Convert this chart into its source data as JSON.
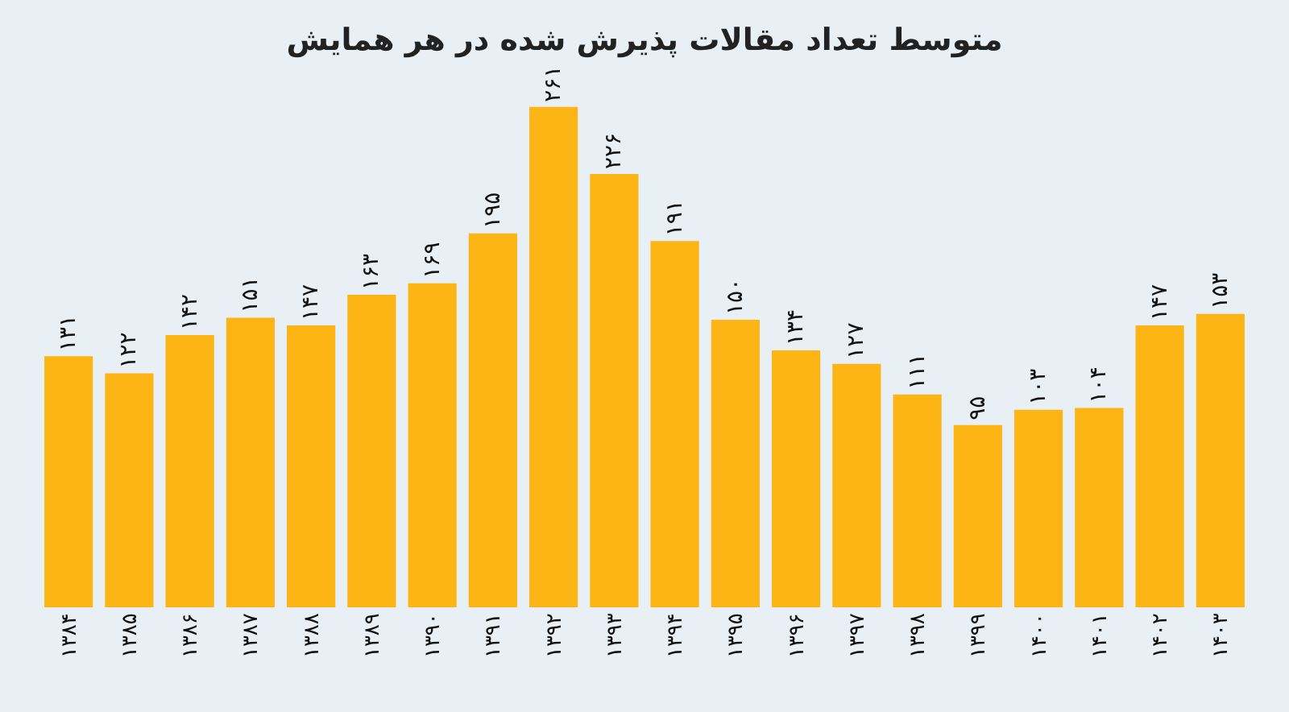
{
  "chart_data": {
    "type": "bar",
    "title": "متوسط تعداد مقالات پذیرش شده در هر همایش",
    "categories": [
      "۱۳۸۴",
      "۱۳۸۵",
      "۱۳۸۶",
      "۱۳۸۷",
      "۱۳۸۸",
      "۱۳۸۹",
      "۱۳۹۰",
      "۱۳۹۱",
      "۱۳۹۲",
      "۱۳۹۳",
      "۱۳۹۴",
      "۱۳۹۵",
      "۱۳۹۶",
      "۱۳۹۷",
      "۱۳۹۸",
      "۱۳۹۹",
      "۱۴۰۰",
      "۱۴۰۱",
      "۱۴۰۲",
      "۱۴۰۳"
    ],
    "values": [
      131,
      122,
      142,
      151,
      147,
      163,
      169,
      195,
      261,
      226,
      191,
      150,
      134,
      127,
      111,
      95,
      103,
      104,
      147,
      153
    ],
    "value_labels": [
      "۱۳۱",
      "۱۲۲",
      "۱۴۲",
      "۱۵۱",
      "۱۴۷",
      "۱۶۳",
      "۱۶۹",
      "۱۹۵",
      "۲۶۱",
      "۲۲۶",
      "۱۹۱",
      "۱۵۰",
      "۱۳۴",
      "۱۲۷",
      "۱۱۱",
      "۹۵",
      "۱۰۳",
      "۱۰۴",
      "۱۴۷",
      "۱۵۳"
    ],
    "color": "#fdb515",
    "grid": false,
    "legend": false
  }
}
